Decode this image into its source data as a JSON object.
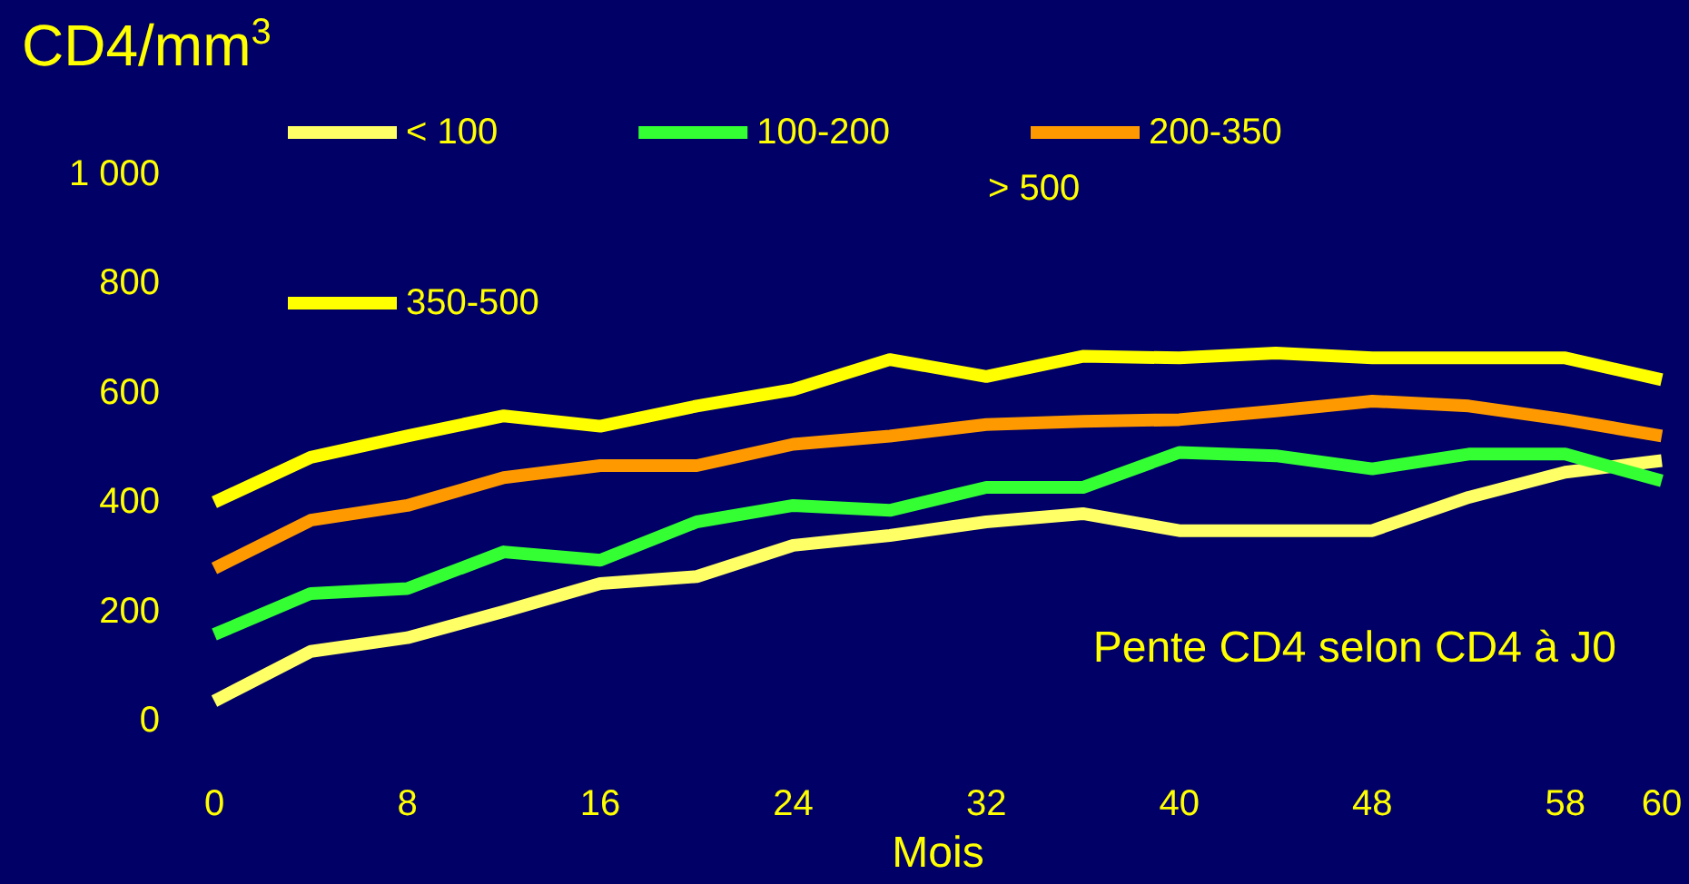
{
  "chart_data": {
    "type": "line",
    "ylabel": "CD4/mm$^{3}$",
    "xlabel": "Mois",
    "categories": [
      "0",
      null,
      "8",
      null,
      "16",
      null,
      "24",
      null,
      "32",
      null,
      "40",
      null,
      "48",
      null,
      "58",
      "60"
    ],
    "series": [
      {
        "name": "< 100",
        "color": "#ffff66",
        "values": [
          36,
          127,
          152,
          200,
          251,
          264,
          321,
          339,
          364,
          379,
          348,
          348,
          348,
          409,
          455,
          476
        ]
      },
      {
        "name": "100-200",
        "color": "#33ff33",
        "values": [
          158,
          233,
          242,
          309,
          294,
          364,
          394,
          385,
          427,
          427,
          491,
          485,
          461,
          488,
          488,
          439
        ]
      },
      {
        "name": "200-350",
        "color": "#ff9900",
        "values": [
          279,
          367,
          394,
          445,
          467,
          467,
          506,
          521,
          542,
          548,
          551,
          567,
          585,
          576,
          551,
          521
        ]
      },
      {
        "name": "350-500",
        "color": "#ffff00",
        "values": [
          400,
          482,
          521,
          558,
          539,
          576,
          606,
          661,
          630,
          667,
          664,
          673,
          664,
          664,
          664,
          624
        ]
      }
    ],
    "ylim": [
      0,
      1000
    ],
    "yticks": [
      0,
      200,
      400,
      600,
      800,
      {
        "value": 1000,
        "label": "1 000"
      }
    ],
    "annotations": [
      "> 500",
      "Pente CD4 selon CD4 à J0"
    ],
    "grid": false,
    "legend": "top",
    "marker": "none",
    "line_style": "solid"
  }
}
